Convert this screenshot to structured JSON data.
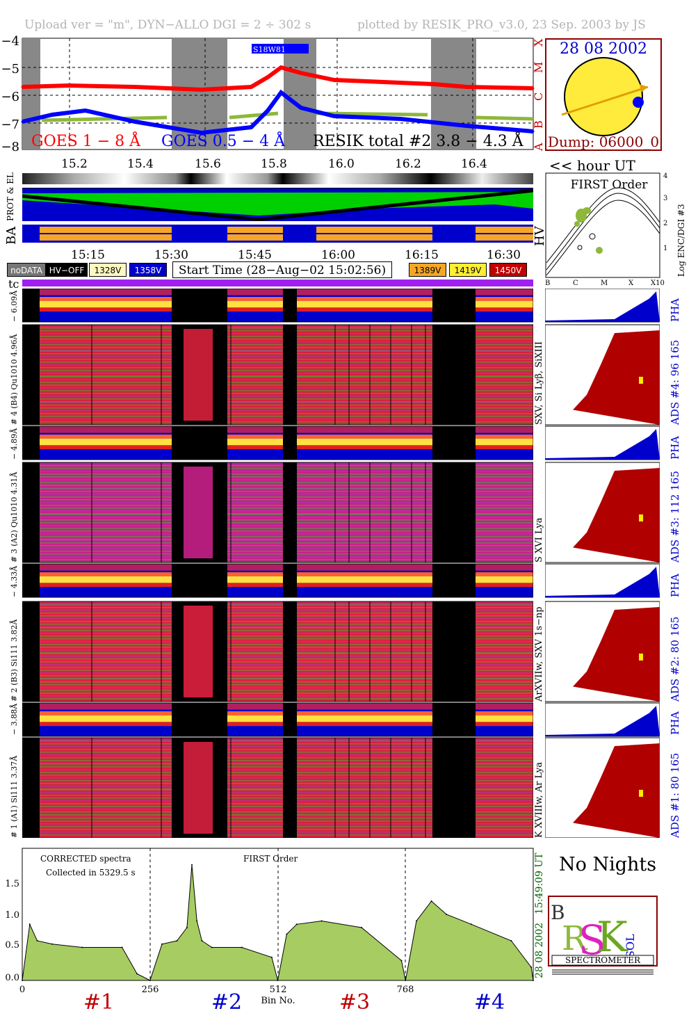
{
  "header": {
    "left": "Upload ver = \"m\", DYN−ALLO DGI =   2 ÷ 302 s",
    "right": "plotted by RESIK_PRO_v3.0, 23 Sep. 2003 by JS"
  },
  "colors": {
    "goes_long": "#ff0000",
    "goes_short": "#0000ff",
    "resik": "#8db83a",
    "night": "#888888",
    "hv": "#f5a623",
    "spectrum_fill": "#a6cc62"
  },
  "goes": {
    "yticks": [
      "−4",
      "−5",
      "−6",
      "−7",
      "−8"
    ],
    "class_letters": [
      "X",
      "M",
      "C",
      "B",
      "A"
    ],
    "label_long": "GOES 1 − 8 Å",
    "label_short": "GOES 0.5 − 4 Å",
    "label_resik": "RESIK total #2  3.8 − 4.3 Å",
    "flag": "S18W81"
  },
  "sun": {
    "date": "28 08 2002",
    "dump": "Dump: 06000_0"
  },
  "hour_axis": {
    "ticks": [
      "15.2",
      "15.4",
      "15.6",
      "15.8",
      "16.0",
      "16.2",
      "16.4"
    ],
    "label": "<< hour UT"
  },
  "prot_label": "PROT & EL",
  "ba_label": "BA",
  "hv_label": "HV",
  "first_order": {
    "title": "FIRST Order",
    "ylabel": "Log ENC/DGI #3",
    "yticks": [
      "1",
      "2",
      "3",
      "4"
    ],
    "xticks": [
      "B",
      "C",
      "M",
      "X",
      "X10"
    ]
  },
  "time_axis": {
    "ticks": [
      "15:15",
      "15:30",
      "15:45",
      "16:00",
      "16:15",
      "16:30"
    ]
  },
  "legend": {
    "nodata": "noDATA",
    "hvoff": "HV−OFF",
    "v1": "1328V",
    "v2": "1358V",
    "start": "Start Time (28−Aug−02 15:02:56)",
    "v3": "1389V",
    "v4": "1419V",
    "v5": "1450V",
    "tc": "tc"
  },
  "channels": [
    {
      "pha_label": "4.96Å − 6.09Å",
      "label": "# 4 (B4) Qu1010  4.96Å",
      "lines": "SXV, Si Lyβ, SiXIII",
      "ads": "ADS #4:   96 165",
      "pha": "PHA"
    },
    {
      "pha_label": "4.31Å − 4.89Å",
      "label": "# 3 (A2) Qu1010  4.31Å",
      "lines": "S XVI Lya",
      "ads": "ADS #3:   112 165",
      "pha": "PHA"
    },
    {
      "pha_label": "3.82Å − 4.33Å",
      "label": "# 2 (B3) Si111  3.82Å",
      "lines": "ArXVIIw, SXV 1s−np",
      "ads": "ADS #2:   80 165",
      "pha": "PHA"
    },
    {
      "pha_label": "3.37Å − 3.88Å",
      "label": "# 1 (A1) Si111  3.37Å",
      "lines": "K XVIIIw, Ar Lya",
      "ads": "ADS #1:   80 165",
      "pha": "PHA"
    }
  ],
  "spectrum": {
    "note1": "CORRECTED spectra",
    "note2": "Collected in  5329.5 s",
    "title": "FIRST Order",
    "time": "15:49:09 UT",
    "date": "28 08 2002",
    "xlabel": "Bin No.",
    "xticks": [
      "0",
      "256",
      "512",
      "768"
    ],
    "yticks": [
      "0.0",
      "0.5",
      "1.0",
      "1.5"
    ],
    "bands": [
      "#1",
      "#2",
      "#3",
      "#4"
    ]
  },
  "no_nights": "No Nights",
  "logo": {
    "spectrometer": "SPECTROMETER"
  },
  "chart_data": [
    {
      "type": "line",
      "ylabel": "",
      "ylim": [
        -8,
        -4
      ],
      "xlim": [
        15.06,
        16.6
      ],
      "series": [
        {
          "name": "GOES 1 − 8 Å",
          "x": [
            15.06,
            15.2,
            15.4,
            15.6,
            15.75,
            15.8,
            15.84,
            15.9,
            16.0,
            16.2,
            16.3,
            16.4,
            16.6
          ],
          "y": [
            -5.75,
            -5.7,
            -5.75,
            -5.85,
            -5.75,
            -5.4,
            -5.05,
            -5.25,
            -5.5,
            -5.6,
            -5.65,
            -5.75,
            -5.8
          ]
        },
        {
          "name": "GOES 0.5 − 4 Å",
          "x": [
            15.06,
            15.15,
            15.25,
            15.4,
            15.6,
            15.75,
            15.8,
            15.84,
            15.9,
            16.0,
            16.2,
            16.4,
            16.6
          ],
          "y": [
            -7.0,
            -6.75,
            -6.6,
            -7.0,
            -7.4,
            -7.2,
            -6.6,
            -5.95,
            -6.5,
            -6.8,
            -6.9,
            -7.15,
            -7.35
          ]
        }
      ]
    },
    {
      "type": "area",
      "xlabel": "Bin No.",
      "ylim": [
        0,
        2.0
      ],
      "xlim": [
        0,
        1024
      ],
      "x": [
        0,
        15,
        30,
        60,
        120,
        200,
        230,
        256,
        280,
        310,
        330,
        340,
        350,
        360,
        380,
        440,
        500,
        512,
        530,
        550,
        600,
        680,
        760,
        768,
        790,
        820,
        850,
        900,
        980,
        1020,
        1024
      ],
      "y": [
        0,
        0.85,
        0.6,
        0.55,
        0.5,
        0.5,
        0.1,
        0,
        0.55,
        0.6,
        0.8,
        1.75,
        0.9,
        0.6,
        0.5,
        0.5,
        0.35,
        0,
        0.7,
        0.85,
        0.9,
        0.8,
        0.3,
        0,
        0.9,
        1.2,
        1.0,
        0.85,
        0.6,
        0.2,
        0
      ]
    }
  ]
}
